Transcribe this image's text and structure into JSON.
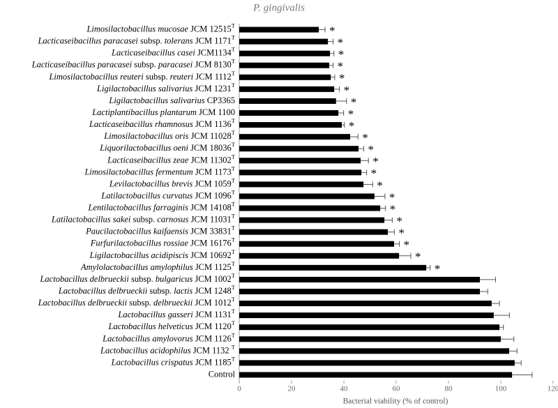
{
  "chart_data": {
    "type": "barh",
    "title": "P. gingivalis",
    "x_label": "Bacterial viability (% of control)",
    "categories": [
      [
        {
          "text": "Limosilactobacillus mucosae",
          "style": "italic"
        },
        {
          "text": " JCM 12515"
        },
        {
          "text": "T",
          "style": "sup"
        }
      ],
      [
        {
          "text": "Lacticaseibacillus paracasei",
          "style": "italic"
        },
        {
          "text": " subsp. "
        },
        {
          "text": "tolerans",
          "style": "italic"
        },
        {
          "text": " JCM 1171"
        },
        {
          "text": "T",
          "style": "sup"
        }
      ],
      [
        {
          "text": "Lacticaseibacillus casei",
          "style": "italic"
        },
        {
          "text": " JCM1134"
        },
        {
          "text": "T",
          "style": "sup"
        }
      ],
      [
        {
          "text": "Lacticaseibacillus paracasei",
          "style": "italic"
        },
        {
          "text": " subsp. "
        },
        {
          "text": "paracasei",
          "style": "italic"
        },
        {
          "text": " JCM 8130"
        },
        {
          "text": "T",
          "style": "sup"
        }
      ],
      [
        {
          "text": "Limosilactobacillus reuteri",
          "style": "italic"
        },
        {
          "text": " subsp. "
        },
        {
          "text": "reuteri",
          "style": "italic"
        },
        {
          "text": " JCM 1112"
        },
        {
          "text": "T",
          "style": "sup"
        }
      ],
      [
        {
          "text": "Ligilactobacillus salivarius",
          "style": "italic"
        },
        {
          "text": " JCM 1231"
        },
        {
          "text": "T",
          "style": "sup"
        }
      ],
      [
        {
          "text": "Ligilactobacillus salivarius",
          "style": "italic"
        },
        {
          "text": " CP3365"
        }
      ],
      [
        {
          "text": "Lactiplantibacillus plantarum",
          "style": "italic"
        },
        {
          "text": " JCM 1100"
        }
      ],
      [
        {
          "text": "Lacticaseibacillus rhamnosus",
          "style": "italic"
        },
        {
          "text": " JCM 1136"
        },
        {
          "text": "T",
          "style": "sup"
        }
      ],
      [
        {
          "text": "Limosilactobacillus oris",
          "style": "italic"
        },
        {
          "text": " JCM 11028"
        },
        {
          "text": "T",
          "style": "sup"
        }
      ],
      [
        {
          "text": "Liquorilactobacillus oeni",
          "style": "italic"
        },
        {
          "text": " JCM 18036"
        },
        {
          "text": "T",
          "style": "sup"
        }
      ],
      [
        {
          "text": "Lacticaseibacillus zeae",
          "style": "italic"
        },
        {
          "text": " JCM 11302"
        },
        {
          "text": "T",
          "style": "sup"
        }
      ],
      [
        {
          "text": "Limosilactobacillus fermentum",
          "style": "italic"
        },
        {
          "text": " JCM 1173"
        },
        {
          "text": "T",
          "style": "sup"
        }
      ],
      [
        {
          "text": "Levilactobacillus brevis",
          "style": "italic"
        },
        {
          "text": " JCM 1059"
        },
        {
          "text": "T",
          "style": "sup"
        }
      ],
      [
        {
          "text": "Latilactobacillus curvatus",
          "style": "italic"
        },
        {
          "text": " JCM 1096"
        },
        {
          "text": "T",
          "style": "sup"
        }
      ],
      [
        {
          "text": "Lentilactobacillus farraginis",
          "style": "italic"
        },
        {
          "text": " JCM 14108"
        },
        {
          "text": "T",
          "style": "sup"
        }
      ],
      [
        {
          "text": "Latilactobacillus sakei",
          "style": "italic"
        },
        {
          "text": " subsp. "
        },
        {
          "text": "carnosus",
          "style": "italic"
        },
        {
          "text": " JCM 11031"
        },
        {
          "text": "T",
          "style": "sup"
        }
      ],
      [
        {
          "text": "Paucilactobacillus kaifaensis",
          "style": "italic"
        },
        {
          "text": " JCM 33831"
        },
        {
          "text": "T",
          "style": "sup"
        }
      ],
      [
        {
          "text": "Furfurilactobacillus rossiae",
          "style": "italic"
        },
        {
          "text": " JCM 16176"
        },
        {
          "text": "T",
          "style": "sup"
        }
      ],
      [
        {
          "text": "Ligilactobacillus acidipiscis",
          "style": "italic"
        },
        {
          "text": " JCM 10692"
        },
        {
          "text": "T",
          "style": "sup"
        }
      ],
      [
        {
          "text": "Amylolactobacillus amylophilus",
          "style": "italic"
        },
        {
          "text": " JCM 1125"
        },
        {
          "text": "T",
          "style": "sup"
        }
      ],
      [
        {
          "text": "Lactobacillus delbrueckii",
          "style": "italic"
        },
        {
          "text": " subsp. "
        },
        {
          "text": "bulgaricus",
          "style": "italic"
        },
        {
          "text": " JCM 1002"
        },
        {
          "text": "T",
          "style": "sup"
        }
      ],
      [
        {
          "text": "Lactobacillus delbrueckii",
          "style": "italic"
        },
        {
          "text": " subsp. "
        },
        {
          "text": "lactis",
          "style": "italic"
        },
        {
          "text": " JCM 1248"
        },
        {
          "text": "T",
          "style": "sup"
        }
      ],
      [
        {
          "text": "Lactobacillus delbrueckii",
          "style": "italic"
        },
        {
          "text": " subsp. "
        },
        {
          "text": "delbrueckii",
          "style": "italic"
        },
        {
          "text": " JCM 1012"
        },
        {
          "text": "T",
          "style": "sup"
        }
      ],
      [
        {
          "text": "Lactobacillus gasseri",
          "style": "italic"
        },
        {
          "text": " JCM 1131"
        },
        {
          "text": "T",
          "style": "sup"
        }
      ],
      [
        {
          "text": "Lactobacillus helveticus",
          "style": "italic"
        },
        {
          "text": " JCM 1120"
        },
        {
          "text": "T",
          "style": "sup"
        }
      ],
      [
        {
          "text": "Lactobacillus amylovorus",
          "style": "italic"
        },
        {
          "text": " JCM 1126"
        },
        {
          "text": "T",
          "style": "sup"
        }
      ],
      [
        {
          "text": "Lactobacillus acidophilus",
          "style": "italic"
        },
        {
          "text": " JCM 1132 "
        },
        {
          "text": "T",
          "style": "sup"
        }
      ],
      [
        {
          "text": "Lactobacillus crispatus",
          "style": "italic"
        },
        {
          "text": " JCM 1185"
        },
        {
          "text": "T",
          "style": "sup"
        }
      ],
      [
        {
          "text": "Control"
        }
      ]
    ],
    "values": [
      30.4,
      33.9,
      34.7,
      34.4,
      35,
      36.3,
      37,
      37.9,
      39.2,
      42.4,
      45.6,
      46.4,
      46.7,
      47.5,
      51.7,
      53.9,
      55.5,
      56.8,
      59.2,
      61.1,
      71.5,
      92,
      92,
      96.5,
      97.3,
      99.5,
      100,
      103.2,
      105.3,
      104.3
    ],
    "errors": [
      2.4,
      2,
      1.5,
      1.5,
      1.5,
      2,
      4,
      2,
      1,
      3,
      2,
      3,
      2,
      3.5,
      4,
      2,
      3,
      2.5,
      2,
      4.5,
      1.5,
      6,
      3,
      3,
      6,
      1.5,
      5,
      3,
      2.5,
      7.7
    ],
    "significance": [
      "*",
      "*",
      "*",
      "*",
      "*",
      "*",
      "*",
      "*",
      "*",
      "*",
      "*",
      "*",
      "*",
      "*",
      "*",
      "*",
      "*",
      "*",
      "*",
      "*",
      "*",
      null,
      null,
      null,
      null,
      null,
      null,
      null,
      null,
      null
    ],
    "color": "#000000",
    "xlim": [
      0,
      120
    ],
    "xticks": [
      0,
      20,
      40,
      60,
      80,
      100,
      120
    ]
  }
}
